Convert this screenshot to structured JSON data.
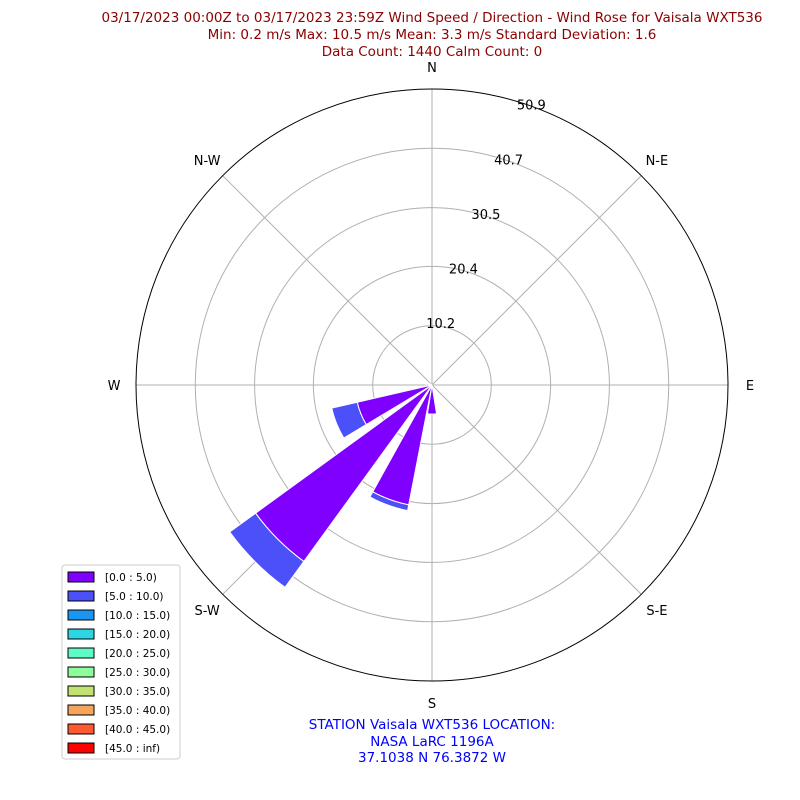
{
  "chart_data": {
    "type": "windrose",
    "title_lines": [
      "03/17/2023 00:00Z to 03/17/2023 23:59Z Wind Speed / Direction - Wind Rose for Vaisala WXT536",
      "Min: 0.2 m/s   Max: 10.5 m/s   Mean: 3.3 m/s  Standard Deviation: 1.6",
      "Data Count: 1440  Calm Count:  0"
    ],
    "directions": [
      "N",
      "N-E",
      "E",
      "S-E",
      "S",
      "S-W",
      "W",
      "N-W"
    ],
    "ring_values": [
      "10.2",
      "20.4",
      "30.5",
      "40.7",
      "50.9"
    ],
    "rmax": 50.9,
    "sectors": [
      {
        "bearing": 180,
        "width": 18,
        "stacks": [
          5.0,
          0
        ]
      },
      {
        "bearing": 200,
        "width": 18,
        "stacks": [
          21.0,
          1.0
        ]
      },
      {
        "bearing": 225,
        "width": 18,
        "stacks": [
          37.5,
          5.5
        ]
      },
      {
        "bearing": 248,
        "width": 18,
        "stacks": [
          13.2,
          4.5
        ]
      },
      {
        "bearing": 270,
        "width": 18,
        "stacks": [
          1.0,
          0
        ]
      },
      {
        "bearing": 292,
        "width": 18,
        "stacks": [
          0.6,
          0
        ]
      }
    ],
    "bin_colors": [
      "#7f00ff",
      "#4c50f9",
      "#1a96f2",
      "#2cd6e4",
      "#5efbc5",
      "#8efd9c",
      "#c2e372",
      "#f4a55a",
      "#ff5a2f",
      "#ff0000"
    ],
    "legend": [
      "[0.0 : 5.0)",
      "[5.0 : 10.0)",
      "[10.0 : 15.0)",
      "[15.0 : 20.0)",
      "[20.0 : 25.0)",
      "[25.0 : 30.0)",
      "[30.0 : 35.0)",
      "[35.0 : 40.0)",
      "[40.0 : 45.0)",
      "[45.0 : inf)"
    ],
    "legend_position": "lower-left",
    "grid": true
  },
  "station_lines": [
    "STATION Vaisala WXT536 LOCATION:",
    "NASA LaRC 1196A",
    "37.1038 N 76.3872 W"
  ]
}
